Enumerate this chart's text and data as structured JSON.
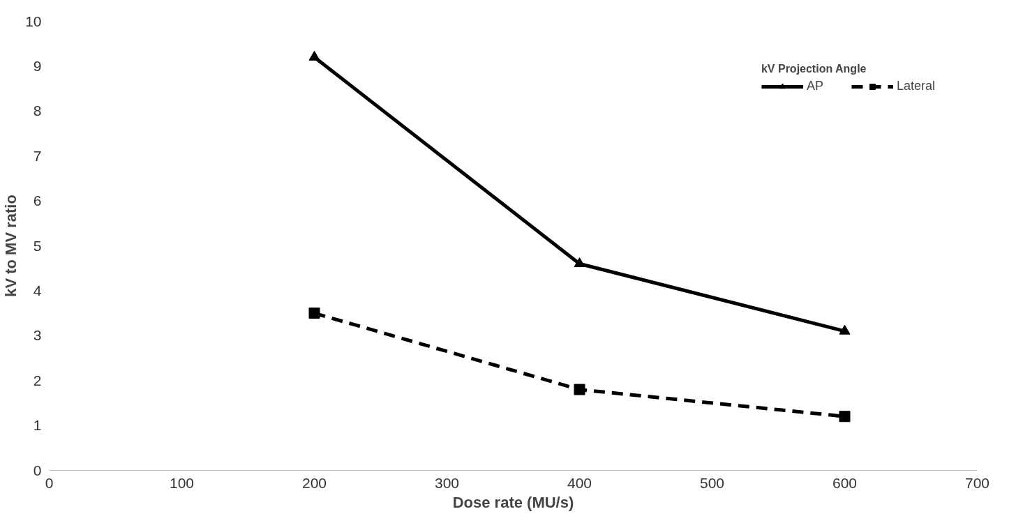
{
  "chart_data": {
    "type": "line",
    "xlabel": "Dose rate (MU/s)",
    "ylabel": "kV to MV ratio",
    "legend_title": "kV Projection Angle",
    "x": [
      200,
      400,
      600
    ],
    "series": [
      {
        "name": "AP",
        "color": "#000000",
        "values": [
          9.2,
          4.6,
          3.1
        ],
        "marker": "triangle",
        "line_style": "solid"
      },
      {
        "name": "Lateral",
        "color": "#000000",
        "values": [
          3.5,
          1.8,
          1.2
        ],
        "marker": "square",
        "line_style": "dashed"
      }
    ],
    "xlim": [
      0,
      700
    ],
    "xticks": [
      0,
      100,
      200,
      300,
      400,
      500,
      600,
      700
    ],
    "ylim": [
      0,
      10
    ],
    "yticks": [
      0,
      1,
      2,
      3,
      4,
      5,
      6,
      7,
      8,
      9,
      10
    ],
    "grid": false,
    "legend": "top right"
  }
}
